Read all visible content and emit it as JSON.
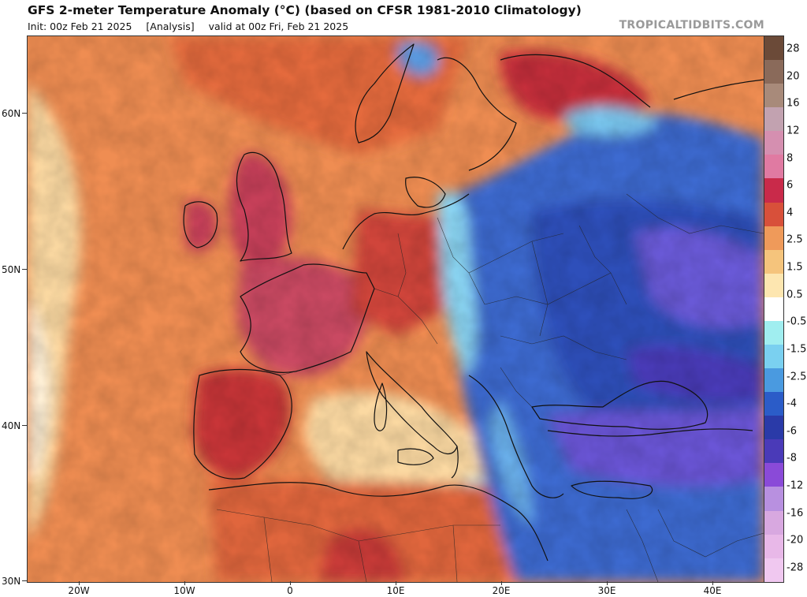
{
  "header": {
    "title": "GFS 2-meter Temperature Anomaly (°C) (based on CFSR 1981-2010 Climatology)",
    "init": "Init: 00z Feb 21 2025",
    "analysis": "[Analysis]",
    "valid": "valid at 00z Fri, Feb 21 2025",
    "brand": "TROPICALTIDBITS.COM"
  },
  "map": {
    "lat_labels": [
      "60N",
      "50N",
      "40N",
      "30N"
    ],
    "lon_labels": [
      "20W",
      "10W",
      "0",
      "10E",
      "20E",
      "30E",
      "40E"
    ],
    "warm_color": "#d24a3a",
    "cold_color": "#3a58c8"
  },
  "colorbar": {
    "labels": [
      "28",
      "20",
      "16",
      "12",
      "8",
      "6",
      "4",
      "2.5",
      "1.5",
      "0.5",
      "-0.5",
      "-1.5",
      "-2.5",
      "-4",
      "-6",
      "-8",
      "-12",
      "-16",
      "-20",
      "-28"
    ],
    "colors": [
      "#6b4a38",
      "#8a6a5a",
      "#a88a7a",
      "#c2a2b0",
      "#d58fb0",
      "#e07aa2",
      "#c92a4a",
      "#d8503a",
      "#ef9a5a",
      "#f5c47c",
      "#fde6b0",
      "#ffffff",
      "#a0eef0",
      "#7ad0f0",
      "#4a9ae0",
      "#2b5cc8",
      "#2a3aa8",
      "#4a3ab8",
      "#8a4ad8",
      "#b890e0",
      "#d8a8e0",
      "#e8b8e8",
      "#f0c8f0"
    ]
  }
}
